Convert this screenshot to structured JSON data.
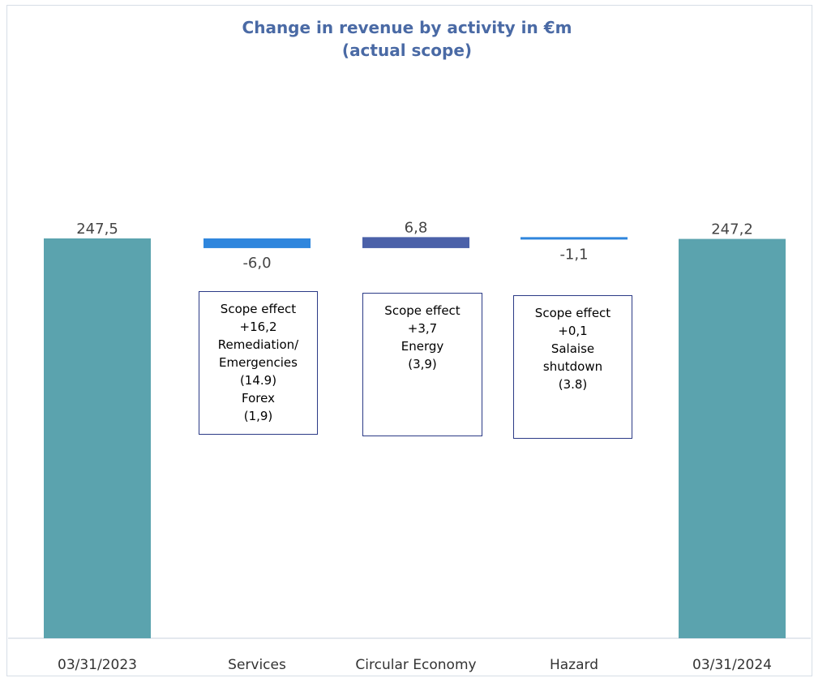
{
  "chart_data": {
    "type": "bar",
    "subtype": "waterfall",
    "title": "Change in revenue by activity in €m",
    "subtitle": "(actual scope)",
    "categories": [
      "03/31/2023",
      "Services",
      "Circular Economy",
      "Hazard",
      "03/31/2024"
    ],
    "values": [
      247.5,
      -6.0,
      6.8,
      -1.1,
      247.2
    ],
    "value_labels": [
      "247,5",
      "-6,0",
      "6,8",
      "-1,1",
      "247,2"
    ],
    "bar_kinds": [
      "total",
      "delta",
      "delta",
      "delta",
      "total"
    ],
    "colors": {
      "total": "#5ba3ae",
      "services": "#2f86dd",
      "circular_economy": "#4b61a9",
      "hazard": "#2f86dd",
      "title": "#4a6aa5",
      "label": "#444444"
    },
    "annotations": [
      {
        "category": "Services",
        "lines": [
          "Scope effect",
          "+16,2",
          "Remediation/",
          "Emergencies",
          "(14.9)",
          "Forex",
          "(1,9)"
        ]
      },
      {
        "category": "Circular Economy",
        "lines": [
          "Scope effect",
          "+3,7",
          "Energy",
          "(3,9)"
        ]
      },
      {
        "category": "Hazard",
        "lines": [
          "Scope effect",
          "+0,1",
          "Salaise",
          "shutdown",
          "(3.8)"
        ]
      }
    ],
    "xlabel": "",
    "ylabel": "",
    "grid": false,
    "legend": "none"
  }
}
